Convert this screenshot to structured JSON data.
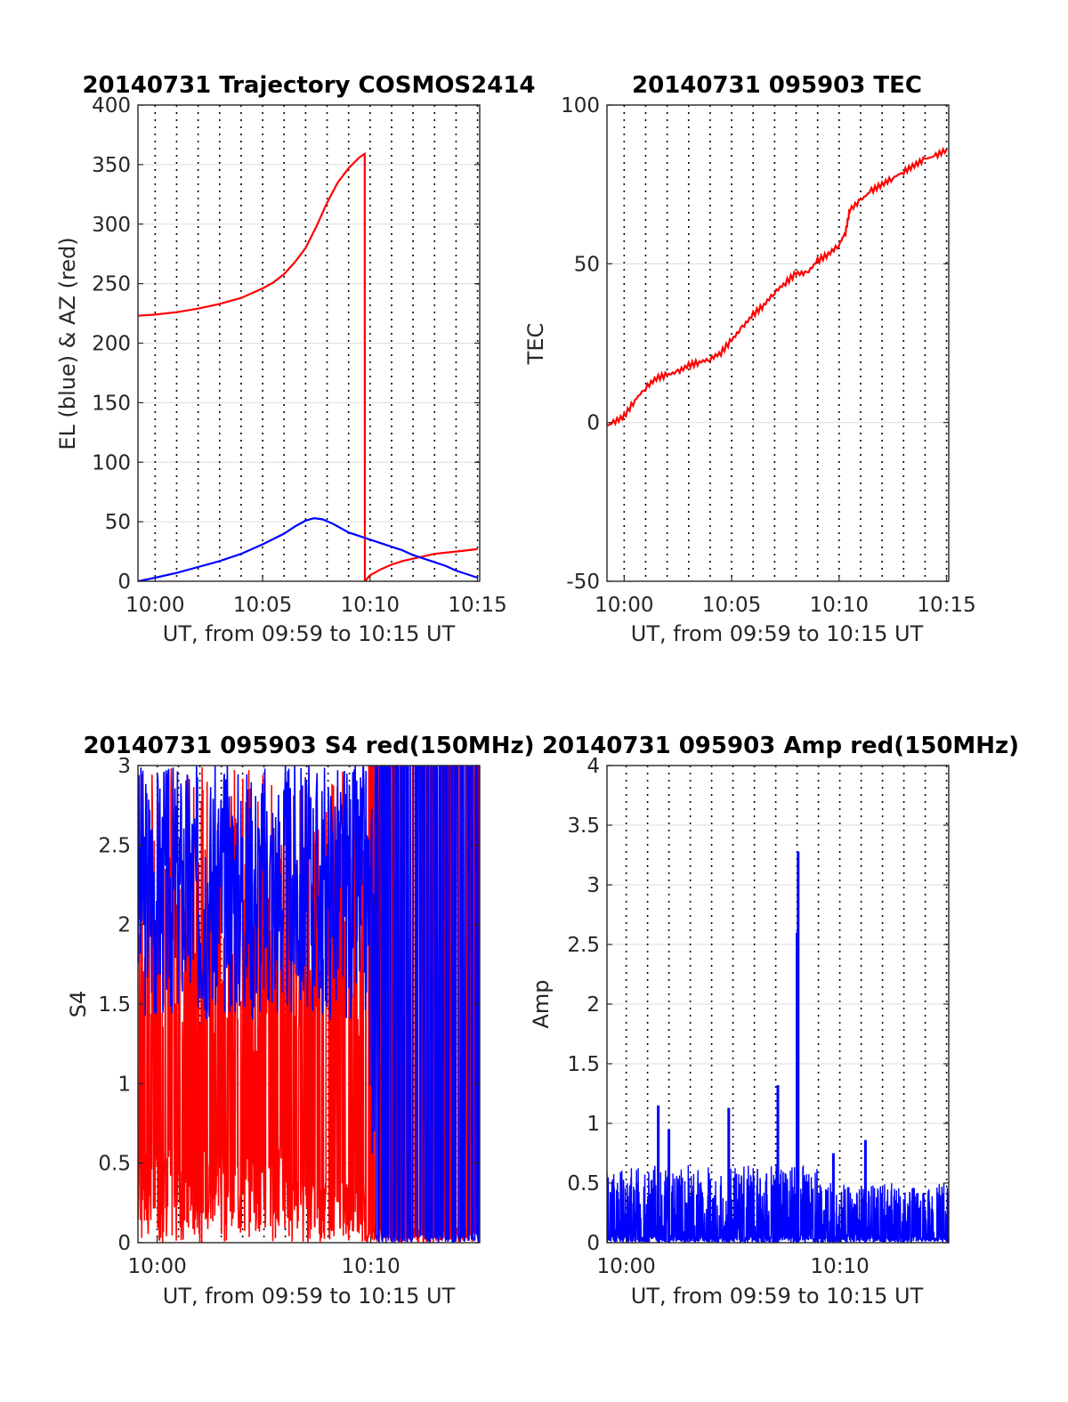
{
  "colors": {
    "red": "#ff0000",
    "blue": "#0000ff",
    "axis": "#262626",
    "grid": "#dcdcdc"
  },
  "chart_data": [
    {
      "id": "traj",
      "type": "line",
      "title": "20140731 Trajectory COSMOS2414",
      "xlabel": "UT, from 09:59 to 10:15 UT",
      "ylabel": "EL (blue) & AZ (red)",
      "xlim": [
        599.2,
        615.1
      ],
      "ylim": [
        0,
        400
      ],
      "xticks": [
        {
          "v": 600,
          "label": "10:00"
        },
        {
          "v": 605,
          "label": "10:05"
        },
        {
          "v": 610,
          "label": "10:10"
        },
        {
          "v": 615,
          "label": "10:15"
        }
      ],
      "yticks": [
        {
          "v": 0,
          "label": "0"
        },
        {
          "v": 50,
          "label": "50"
        },
        {
          "v": 100,
          "label": "100"
        },
        {
          "v": 150,
          "label": "150"
        },
        {
          "v": 200,
          "label": "200"
        },
        {
          "v": 250,
          "label": "250"
        },
        {
          "v": 300,
          "label": "300"
        },
        {
          "v": 350,
          "label": "350"
        },
        {
          "v": 400,
          "label": "400"
        }
      ],
      "grid": "dotted vertical every minute, light horizontal",
      "series": [
        {
          "color": "red",
          "points": [
            [
              599.2,
              223
            ],
            [
              600,
              224
            ],
            [
              601,
              226
            ],
            [
              602,
              229
            ],
            [
              603,
              233
            ],
            [
              604,
              238
            ],
            [
              605,
              246
            ],
            [
              605.5,
              251
            ],
            [
              606,
              258
            ],
            [
              606.5,
              268
            ],
            [
              607,
              280
            ],
            [
              607.5,
              298
            ],
            [
              608,
              318
            ],
            [
              608.5,
              335
            ],
            [
              609,
              347
            ],
            [
              609.5,
              356
            ],
            [
              609.75,
              359
            ],
            [
              609.76,
              0
            ],
            [
              610,
              5
            ],
            [
              610.5,
              10
            ],
            [
              611,
              14
            ],
            [
              611.5,
              17
            ],
            [
              612,
              19
            ],
            [
              612.5,
              21
            ],
            [
              613,
              23
            ],
            [
              613.5,
              24
            ],
            [
              614,
              25
            ],
            [
              615,
              27
            ]
          ]
        },
        {
          "color": "blue",
          "points": [
            [
              599.2,
              0
            ],
            [
              600,
              3
            ],
            [
              601,
              7
            ],
            [
              602,
              12
            ],
            [
              603,
              17
            ],
            [
              604,
              23
            ],
            [
              605,
              31
            ],
            [
              606,
              40
            ],
            [
              606.5,
              46
            ],
            [
              607,
              51
            ],
            [
              607.4,
              53
            ],
            [
              607.8,
              52
            ],
            [
              608.3,
              48
            ],
            [
              609,
              41
            ],
            [
              609.5,
              38
            ],
            [
              610,
              35
            ],
            [
              610.5,
              32
            ],
            [
              611,
              29
            ],
            [
              611.5,
              26
            ],
            [
              612,
              22
            ],
            [
              612.5,
              19
            ],
            [
              613,
              16
            ],
            [
              613.5,
              13
            ],
            [
              614,
              9
            ],
            [
              614.5,
              6
            ],
            [
              615,
              3
            ]
          ]
        }
      ]
    },
    {
      "id": "tec",
      "type": "line",
      "title": "20140731 095903 TEC",
      "xlabel": "UT, from 09:59 to 10:15 UT",
      "ylabel": "TEC",
      "xlim": [
        599.2,
        615.1
      ],
      "ylim": [
        -50,
        100
      ],
      "xticks": [
        {
          "v": 600,
          "label": "10:00"
        },
        {
          "v": 605,
          "label": "10:05"
        },
        {
          "v": 610,
          "label": "10:10"
        },
        {
          "v": 615,
          "label": "10:15"
        }
      ],
      "yticks": [
        {
          "v": -50,
          "label": "-50"
        },
        {
          "v": 0,
          "label": "0"
        },
        {
          "v": 50,
          "label": "50"
        },
        {
          "v": 100,
          "label": "100"
        }
      ],
      "grid": "dotted vertical every minute, light horizontal",
      "series": [
        {
          "color": "red",
          "points": [
            [
              599.2,
              -1
            ],
            [
              599.5,
              0
            ],
            [
              600,
              2
            ],
            [
              600.5,
              7
            ],
            [
              601,
              11
            ],
            [
              601.5,
              14
            ],
            [
              602,
              15
            ],
            [
              602.5,
              16
            ],
            [
              603,
              18
            ],
            [
              603.5,
              19
            ],
            [
              604,
              20
            ],
            [
              604.5,
              22
            ],
            [
              605,
              26
            ],
            [
              605.5,
              30
            ],
            [
              606,
              34
            ],
            [
              606.5,
              37
            ],
            [
              607,
              41
            ],
            [
              607.5,
              44
            ],
            [
              608,
              47
            ],
            [
              608.5,
              47
            ],
            [
              609,
              51
            ],
            [
              609.5,
              53
            ],
            [
              610,
              56
            ],
            [
              610.3,
              60
            ],
            [
              610.5,
              67
            ],
            [
              611,
              70
            ],
            [
              611.5,
              73
            ],
            [
              612,
              75
            ],
            [
              612.5,
              77
            ],
            [
              613,
              79
            ],
            [
              613.5,
              81
            ],
            [
              614,
              83
            ],
            [
              614.5,
              84
            ],
            [
              615,
              86
            ]
          ]
        }
      ]
    },
    {
      "id": "s4",
      "type": "line",
      "title": "20140731 095903 S4 red(150MHz)",
      "xlabel": "UT, from 09:59 to 10:15 UT",
      "ylabel": "S4",
      "xlim": [
        599.1,
        615.1
      ],
      "ylim": [
        0,
        3
      ],
      "xticks": [
        {
          "v": 600,
          "label": "10:00"
        },
        {
          "v": 610,
          "label": "10:10"
        }
      ],
      "yticks": [
        {
          "v": 0,
          "label": "0"
        },
        {
          "v": 0.5,
          "label": "0.5"
        },
        {
          "v": 1,
          "label": "1"
        },
        {
          "v": 1.5,
          "label": "1.5"
        },
        {
          "v": 2,
          "label": "2"
        },
        {
          "v": 2.5,
          "label": "2.5"
        },
        {
          "v": 3,
          "label": "3"
        }
      ],
      "grid": "dotted vertical every minute, light horizontal",
      "series": [
        {
          "color": "red",
          "note_values": "dense noise 0–3 (clipped), solid red coverage 09:59–10:06"
        },
        {
          "color": "blue",
          "note_values": "fluctuating 1.3–3.0 until ~10:10, then saturated spikes to 3"
        }
      ]
    },
    {
      "id": "amp",
      "type": "line",
      "title": "20140731 095903 Amp red(150MHz)",
      "xlabel": "UT, from 09:59 to 10:15 UT",
      "ylabel": "Amp",
      "xlim": [
        599.1,
        615.1
      ],
      "ylim": [
        0,
        4
      ],
      "xticks": [
        {
          "v": 600,
          "label": "10:00"
        },
        {
          "v": 610,
          "label": "10:10"
        }
      ],
      "yticks": [
        {
          "v": 0,
          "label": "0"
        },
        {
          "v": 0.5,
          "label": "0.5"
        },
        {
          "v": 1,
          "label": "1"
        },
        {
          "v": 1.5,
          "label": "1.5"
        },
        {
          "v": 2,
          "label": "2"
        },
        {
          "v": 2.5,
          "label": "2.5"
        },
        {
          "v": 3,
          "label": "3"
        },
        {
          "v": 3.5,
          "label": "3.5"
        },
        {
          "v": 4,
          "label": "4"
        }
      ],
      "grid": "dotted vertical every minute, light horizontal",
      "series": [
        {
          "color": "blue",
          "baseline": 0.45,
          "spikes": [
            [
              601.5,
              1.15
            ],
            [
              602.0,
              0.95
            ],
            [
              604.8,
              1.13
            ],
            [
              607.1,
              1.32
            ],
            [
              608.0,
              2.6
            ],
            [
              608.05,
              3.28
            ],
            [
              609.7,
              0.75
            ],
            [
              611.2,
              0.86
            ]
          ]
        }
      ]
    }
  ]
}
